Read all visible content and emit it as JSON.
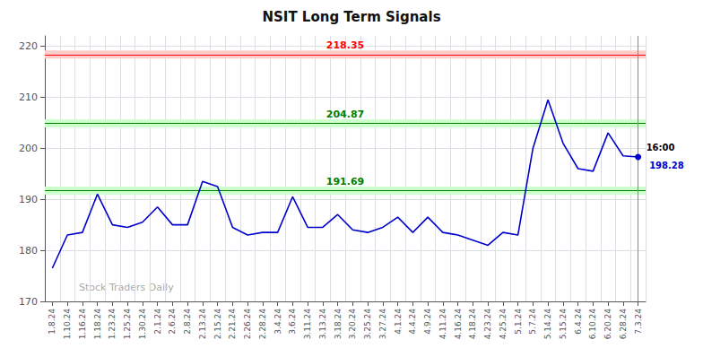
{
  "chart_data": {
    "type": "line",
    "title": "NSIT Long Term Signals",
    "categories": [
      "1.8.24",
      "1.10.24",
      "1.16.24",
      "1.18.24",
      "1.23.24",
      "1.25.24",
      "1.30.24",
      "2.1.24",
      "2.6.24",
      "2.8.24",
      "2.13.24",
      "2.15.24",
      "2.21.24",
      "2.26.24",
      "2.28.24",
      "3.4.24",
      "3.6.24",
      "3.11.24",
      "3.13.24",
      "3.18.24",
      "3.20.24",
      "3.25.24",
      "3.27.24",
      "4.1.24",
      "4.4.24",
      "4.9.24",
      "4.11.24",
      "4.16.24",
      "4.18.24",
      "4.23.24",
      "4.25.24",
      "5.1.24",
      "5.7.24",
      "5.14.24",
      "5.15.24",
      "6.4.24",
      "6.10.24",
      "6.20.24",
      "6.28.24",
      "7.3.24"
    ],
    "values": [
      176.5,
      183.0,
      183.5,
      191.0,
      185.0,
      184.5,
      185.5,
      188.5,
      185.0,
      185.0,
      193.5,
      192.5,
      184.5,
      183.0,
      183.5,
      183.5,
      190.5,
      184.5,
      184.5,
      187.0,
      184.0,
      183.5,
      184.5,
      186.5,
      183.5,
      186.5,
      183.5,
      183.0,
      182.0,
      181.0,
      183.5,
      183.0,
      200.0,
      209.5,
      201.0,
      196.0,
      195.5,
      203.0,
      198.5,
      198.28
    ],
    "color": "#0000cc",
    "ylim": [
      170,
      222
    ],
    "yticks": [
      170,
      180,
      190,
      200,
      210,
      220
    ],
    "grid": true,
    "watermark": "Stock Traders Daily",
    "levels": [
      {
        "value": 218.35,
        "color": "#ff0000",
        "band": [
          217.55,
          219.15
        ],
        "band_color": "#ffcccc"
      },
      {
        "value": 204.87,
        "color": "#008000",
        "band": [
          204.07,
          205.67
        ],
        "band_color": "#ccffcc"
      },
      {
        "value": 191.69,
        "color": "#008000",
        "band": [
          190.89,
          192.49
        ],
        "band_color": "#ccffcc"
      }
    ],
    "last_point": {
      "time": "16:00",
      "price": 198.28,
      "marker": "circle"
    }
  }
}
